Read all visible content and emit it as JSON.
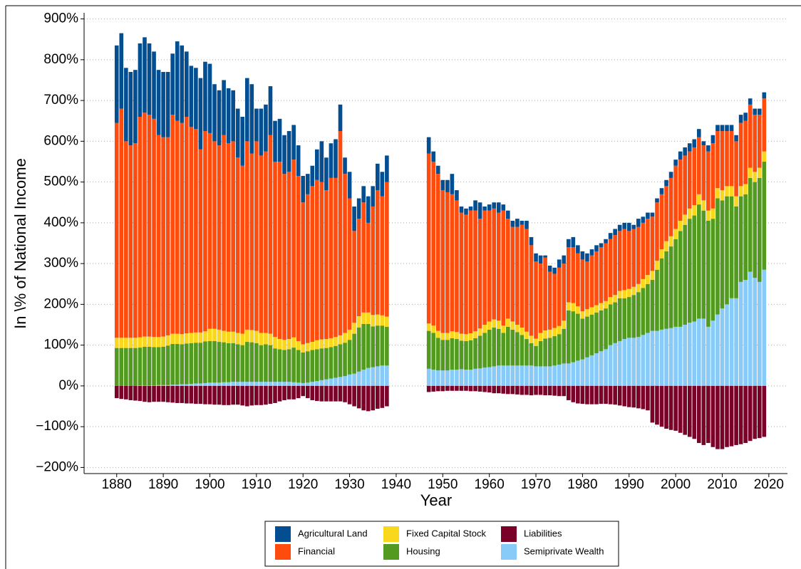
{
  "chart_data": {
    "type": "bar",
    "stacked": true,
    "grid": true,
    "x_label": "Year",
    "y_label": "In \\% of National Income",
    "xlim": [
      1873,
      2024
    ],
    "ylim": [
      -215,
      915
    ],
    "xticks": [
      1880,
      1890,
      1900,
      1910,
      1920,
      1930,
      1940,
      1950,
      1960,
      1970,
      1980,
      1990,
      2000,
      2010,
      2020
    ],
    "yticks": [
      {
        "value": -200,
        "label": "−200%"
      },
      {
        "value": -100,
        "label": "−100%"
      },
      {
        "value": 0,
        "label": "0%"
      },
      {
        "value": 100,
        "label": "100%"
      },
      {
        "value": 200,
        "label": "200%"
      },
      {
        "value": 300,
        "label": "300%"
      },
      {
        "value": 400,
        "label": "400%"
      },
      {
        "value": 500,
        "label": "500%"
      },
      {
        "value": 600,
        "label": "600%"
      },
      {
        "value": 700,
        "label": "700%"
      },
      {
        "value": 800,
        "label": "800%"
      },
      {
        "value": 900,
        "label": "900%"
      }
    ],
    "x": [
      1880,
      1881,
      1882,
      1883,
      1884,
      1885,
      1886,
      1887,
      1888,
      1889,
      1890,
      1891,
      1892,
      1893,
      1894,
      1895,
      1896,
      1897,
      1898,
      1899,
      1900,
      1901,
      1902,
      1903,
      1904,
      1905,
      1906,
      1907,
      1908,
      1909,
      1910,
      1911,
      1912,
      1913,
      1914,
      1915,
      1916,
      1917,
      1918,
      1919,
      1920,
      1921,
      1922,
      1923,
      1924,
      1925,
      1926,
      1927,
      1928,
      1929,
      1930,
      1931,
      1932,
      1933,
      1934,
      1935,
      1936,
      1937,
      1938,
      1947,
      1948,
      1949,
      1950,
      1951,
      1952,
      1953,
      1954,
      1955,
      1956,
      1957,
      1958,
      1959,
      1960,
      1961,
      1962,
      1963,
      1964,
      1965,
      1966,
      1967,
      1968,
      1969,
      1970,
      1971,
      1972,
      1973,
      1974,
      1975,
      1976,
      1977,
      1978,
      1979,
      1980,
      1981,
      1982,
      1983,
      1984,
      1985,
      1986,
      1987,
      1988,
      1989,
      1990,
      1991,
      1992,
      1993,
      1994,
      1995,
      1996,
      1997,
      1998,
      1999,
      2000,
      2001,
      2002,
      2003,
      2004,
      2005,
      2006,
      2007,
      2008,
      2009,
      2010,
      2011,
      2012,
      2013,
      2014,
      2015,
      2016,
      2017,
      2018,
      2019
    ],
    "series": [
      {
        "name": "Agricultural Land",
        "color": "#034e91",
        "values": [
          190,
          185,
          180,
          180,
          180,
          180,
          185,
          175,
          165,
          160,
          160,
          160,
          150,
          195,
          190,
          160,
          150,
          150,
          175,
          170,
          170,
          140,
          135,
          135,
          135,
          125,
          120,
          120,
          155,
          170,
          80,
          115,
          115,
          120,
          100,
          105,
          95,
          100,
          85,
          75,
          65,
          50,
          50,
          75,
          100,
          80,
          85,
          95,
          65,
          40,
          65,
          60,
          50,
          40,
          65,
          50,
          65,
          60,
          65,
          40,
          25,
          20,
          25,
          30,
          50,
          25,
          15,
          15,
          10,
          25,
          40,
          10,
          15,
          15,
          25,
          15,
          20,
          15,
          20,
          10,
          20,
          20,
          20,
          20,
          5,
          15,
          15,
          20,
          20,
          20,
          25,
          20,
          20,
          20,
          15,
          15,
          10,
          10,
          15,
          15,
          15,
          15,
          20,
          10,
          20,
          15,
          15,
          10,
          10,
          15,
          15,
          15,
          15,
          20,
          20,
          20,
          20,
          20,
          10,
          15,
          20,
          15,
          15,
          15,
          15,
          15,
          20,
          20,
          15,
          15,
          15,
          15
        ]
      },
      {
        "name": "Financial",
        "color": "#fe4c0f",
        "values": [
          527,
          562,
          482,
          472,
          477,
          541,
          549,
          544,
          535,
          495,
          489,
          486,
          537,
          522,
          518,
          531,
          505,
          499,
          449,
          491,
          480,
          460,
          452,
          480,
          462,
          467,
          430,
          412,
          462,
          433,
          465,
          435,
          445,
          487,
          430,
          435,
          407,
          410,
          436,
          405,
          348,
          365,
          382,
          393,
          386,
          365,
          393,
          390,
          501,
          390,
          322,
          225,
          239,
          270,
          220,
          266,
          305,
          292,
          330,
          417,
          402,
          385,
          350,
          345,
          336,
          323,
          297,
          293,
          301,
          296,
          269,
          280,
          272,
          272,
          265,
          282,
          245,
          232,
          240,
          252,
          252,
          222,
          189,
          170,
          179,
          142,
          133,
          143,
          140,
          135,
          137,
          130,
          127,
          117,
          127,
          132,
          137,
          142,
          142,
          147,
          147,
          150,
          142,
          142,
          140,
          138,
          138,
          133,
          143,
          135,
          135,
          143,
          155,
          150,
          145,
          140,
          142,
          140,
          135,
          145,
          160,
          140,
          145,
          135,
          135,
          135,
          155,
          155,
          155,
          140,
          130,
          130
        ]
      },
      {
        "name": "Fixed Capital Stock",
        "color": "#f9d71c",
        "values": [
          25,
          25,
          25,
          25,
          25,
          25,
          25,
          25,
          25,
          25,
          25,
          25,
          25,
          25,
          25,
          25,
          25,
          25,
          25,
          25,
          30,
          30,
          30,
          28,
          28,
          28,
          28,
          28,
          30,
          30,
          30,
          30,
          28,
          28,
          28,
          25,
          25,
          25,
          25,
          22,
          20,
          20,
          20,
          22,
          22,
          22,
          22,
          22,
          22,
          24,
          25,
          27,
          28,
          28,
          28,
          28,
          27,
          25,
          25,
          18,
          18,
          17,
          17,
          17,
          17,
          17,
          17,
          17,
          17,
          17,
          18,
          20,
          20,
          20,
          20,
          18,
          20,
          20,
          18,
          18,
          18,
          18,
          18,
          20,
          20,
          20,
          20,
          20,
          20,
          20,
          20,
          18,
          18,
          18,
          18,
          18,
          18,
          18,
          18,
          18,
          18,
          20,
          20,
          20,
          20,
          22,
          22,
          22,
          22,
          22,
          25,
          25,
          25,
          25,
          25,
          25,
          25,
          25,
          25,
          25,
          25,
          25,
          25,
          25,
          25,
          25,
          25,
          25,
          25,
          25,
          25,
          25
        ]
      },
      {
        "name": "Housing",
        "color": "#529b20",
        "values": [
          93,
          93,
          93,
          93,
          93,
          93,
          95,
          95,
          94,
          93,
          94,
          97,
          100,
          100,
          98,
          100,
          100,
          100,
          100,
          102,
          102,
          102,
          100,
          98,
          96,
          95,
          92,
          90,
          98,
          97,
          95,
          90,
          92,
          90,
          82,
          80,
          78,
          80,
          85,
          80,
          75,
          77,
          78,
          78,
          78,
          77,
          77,
          78,
          80,
          82,
          85,
          98,
          108,
          112,
          108,
          100,
          100,
          98,
          95,
          93,
          90,
          80,
          75,
          75,
          77,
          75,
          70,
          70,
          72,
          75,
          80,
          85,
          92,
          95,
          90,
          80,
          95,
          88,
          82,
          75,
          65,
          55,
          50,
          62,
          68,
          70,
          72,
          75,
          85,
          130,
          125,
          115,
          100,
          100,
          100,
          100,
          100,
          100,
          100,
          100,
          105,
          100,
          100,
          105,
          110,
          115,
          120,
          125,
          150,
          175,
          190,
          200,
          215,
          235,
          245,
          255,
          260,
          280,
          265,
          260,
          250,
          285,
          265,
          265,
          250,
          225,
          210,
          210,
          230,
          235,
          255,
          265
        ]
      },
      {
        "name": "Liabilities",
        "color": "#7a0128",
        "values": [
          -30,
          -32,
          -33,
          -35,
          -36,
          -37,
          -39,
          -40,
          -39,
          -39,
          -39,
          -40,
          -41,
          -42,
          -42,
          -43,
          -43,
          -44,
          -44,
          -45,
          -45,
          -46,
          -46,
          -47,
          -47,
          -46,
          -46,
          -48,
          -50,
          -48,
          -47,
          -47,
          -46,
          -44,
          -42,
          -38,
          -35,
          -33,
          -33,
          -30,
          -25,
          -30,
          -35,
          -37,
          -38,
          -38,
          -38,
          -38,
          -38,
          -40,
          -45,
          -50,
          -55,
          -60,
          -62,
          -60,
          -56,
          -54,
          -50,
          -15,
          -14,
          -13,
          -13,
          -12,
          -12,
          -12,
          -12,
          -12,
          -13,
          -13,
          -14,
          -15,
          -16,
          -18,
          -18,
          -19,
          -20,
          -20,
          -21,
          -22,
          -22,
          -23,
          -22,
          -22,
          -23,
          -23,
          -24,
          -25,
          -25,
          -35,
          -40,
          -43,
          -44,
          -45,
          -45,
          -45,
          -44,
          -44,
          -45,
          -46,
          -48,
          -50,
          -52,
          -53,
          -55,
          -57,
          -60,
          -90,
          -95,
          -100,
          -105,
          -108,
          -110,
          -115,
          -120,
          -125,
          -130,
          -140,
          -145,
          -140,
          -150,
          -155,
          -155,
          -150,
          -148,
          -145,
          -143,
          -140,
          -135,
          -130,
          -128,
          -125
        ]
      },
      {
        "name": "Semiprivate Wealth",
        "color": "#88cbf9",
        "values": [
          0,
          0,
          0,
          0,
          0,
          1,
          1,
          1,
          1,
          2,
          2,
          2,
          3,
          3,
          4,
          4,
          5,
          6,
          6,
          7,
          8,
          8,
          8,
          9,
          9,
          10,
          10,
          10,
          10,
          10,
          10,
          10,
          10,
          10,
          10,
          10,
          10,
          10,
          9,
          8,
          7,
          8,
          10,
          12,
          14,
          16,
          18,
          20,
          22,
          24,
          28,
          30,
          35,
          40,
          44,
          46,
          48,
          50,
          50,
          42,
          40,
          38,
          38,
          38,
          40,
          40,
          41,
          40,
          40,
          42,
          43,
          45,
          46,
          48,
          50,
          50,
          50,
          50,
          50,
          50,
          50,
          50,
          48,
          48,
          48,
          48,
          50,
          52,
          55,
          55,
          58,
          62,
          65,
          70,
          75,
          80,
          85,
          90,
          100,
          105,
          110,
          115,
          118,
          118,
          120,
          125,
          130,
          135,
          135,
          138,
          140,
          142,
          145,
          145,
          150,
          155,
          158,
          165,
          165,
          145,
          160,
          175,
          190,
          200,
          215,
          215,
          255,
          260,
          280,
          265,
          255,
          285
        ]
      }
    ]
  }
}
